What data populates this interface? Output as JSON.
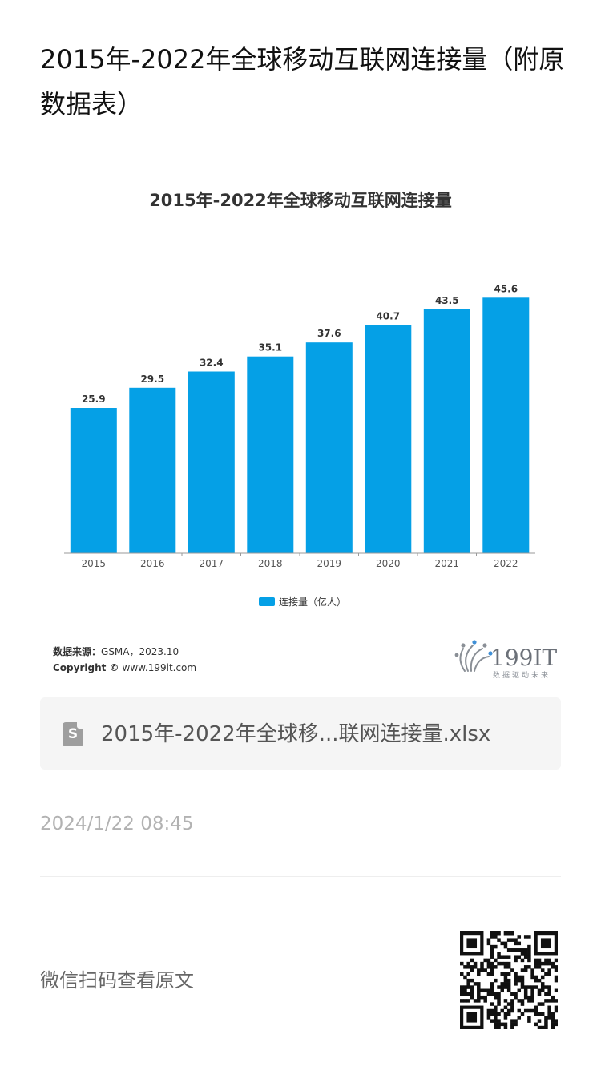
{
  "article": {
    "title": "2015年-2022年全球移动互联网连接量（附原数据表）"
  },
  "chart_data": {
    "type": "bar",
    "title": "2015年-2022年全球移动互联网连接量",
    "categories": [
      "2015",
      "2016",
      "2017",
      "2018",
      "2019",
      "2020",
      "2021",
      "2022"
    ],
    "series": [
      {
        "name": "连接量（亿人）",
        "values": [
          25.9,
          29.5,
          32.4,
          35.1,
          37.6,
          40.7,
          43.5,
          45.6
        ]
      }
    ],
    "ylim": [
      0,
      60
    ],
    "grid": false,
    "legend": "bottom-center",
    "bar_color": "#05a0e6",
    "source_label": "数据来源：",
    "source_text": "GSMA，2023.10",
    "copyright_label": "Copyright ©",
    "copyright_text": "www.199it.com",
    "brand_name": "199IT",
    "brand_tagline": "数据驱动未来"
  },
  "attachment": {
    "icon": "spreadsheet-file-icon",
    "icon_letter": "S",
    "file_name": "2015年-2022年全球移...联网连接量.xlsx"
  },
  "meta": {
    "timestamp": "2024/1/22 08:45"
  },
  "footer": {
    "scan_text": "微信扫码查看原文",
    "qr_icon": "qr-code-icon"
  }
}
